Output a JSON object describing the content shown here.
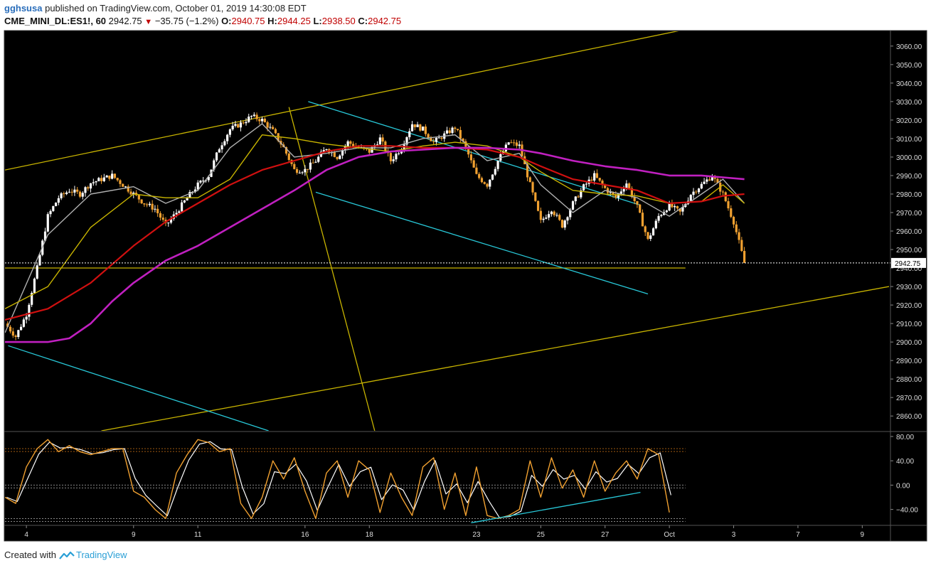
{
  "header": {
    "author": "gghsusa",
    "published_text": "published on TradingView.com, October 01, 2019 14:30:08 EDT",
    "symbol": "CME_MINI_DL:ES1!, 60",
    "last": "2942.75",
    "change": "−35.75 (−1.2%)",
    "open_label": "O:",
    "open": "2940.75",
    "high_label": "H:",
    "high": "2944.25",
    "low_label": "L:",
    "low": "2938.50",
    "close_label": "C:",
    "close": "2942.75",
    "down_arrow_icon": "triangle-down-icon"
  },
  "footer": {
    "created_with": "Created with",
    "brand": "TradingView",
    "logo_icon": "tradingview-logo-icon"
  },
  "colors": {
    "background": "#000000",
    "up_candle": "#ffffff",
    "down_candle": "#f0a030",
    "ma_fast": "#b0b0b0",
    "ma_mid": "#c8b400",
    "ma_slow": "#d01010",
    "ma_long": "#c020c0",
    "channel": "#28c8d8",
    "trendline": "#c8b400",
    "stoch_k": "#f0a030",
    "stoch_d": "#ffffff"
  },
  "chart_data": [
    {
      "type": "candlestick",
      "symbol": "CME_MINI_DL:ES1!",
      "interval": "60",
      "y_ticks": [
        2860,
        2870,
        2880,
        2890,
        2900,
        2910,
        2920,
        2930,
        2940,
        2950,
        2960,
        2970,
        2980,
        2990,
        3000,
        3010,
        3020,
        3030,
        3040,
        3050,
        3060
      ],
      "y_tick_labels": [
        "2860.00",
        "2870.00",
        "2880.00",
        "2890.00",
        "2900.00",
        "2910.00",
        "2920.00",
        "2930.00",
        "2940.00",
        "2950.00",
        "2960.00",
        "2970.00",
        "2980.00",
        "2990.00",
        "3000.00",
        "3010.00",
        "3020.00",
        "3030.00",
        "3040.00",
        "3050.00",
        "3060.00"
      ],
      "ylim": [
        2852,
        3068
      ],
      "last_price_label": "2942.75",
      "x_ticks": [
        {
          "label": "4",
          "t": 2
        },
        {
          "label": "9",
          "t": 12
        },
        {
          "label": "11",
          "t": 18
        },
        {
          "label": "16",
          "t": 28
        },
        {
          "label": "18",
          "t": 34
        },
        {
          "label": "23",
          "t": 44
        },
        {
          "label": "25",
          "t": 50
        },
        {
          "label": "27",
          "t": 56
        },
        {
          "label": "Oct",
          "t": 62
        },
        {
          "label": "3",
          "t": 68
        },
        {
          "label": "7",
          "t": 74
        },
        {
          "label": "9",
          "t": 80
        }
      ],
      "xlim": [
        0,
        82.5
      ],
      "price_path": [
        [
          0,
          2910
        ],
        [
          1,
          2903
        ],
        [
          2,
          2915
        ],
        [
          3,
          2940
        ],
        [
          4,
          2968
        ],
        [
          5,
          2978
        ],
        [
          6,
          2982
        ],
        [
          7,
          2980
        ],
        [
          8,
          2986
        ],
        [
          9,
          2988
        ],
        [
          10,
          2990
        ],
        [
          11,
          2985
        ],
        [
          12,
          2980
        ],
        [
          13,
          2975
        ],
        [
          14,
          2972
        ],
        [
          15,
          2963
        ],
        [
          16,
          2970
        ],
        [
          17,
          2978
        ],
        [
          18,
          2985
        ],
        [
          19,
          2990
        ],
        [
          20,
          3005
        ],
        [
          21,
          3015
        ],
        [
          22,
          3018
        ],
        [
          23,
          3022
        ],
        [
          24,
          3020
        ],
        [
          25,
          3014
        ],
        [
          26,
          3005
        ],
        [
          27,
          2993
        ],
        [
          28,
          2993
        ],
        [
          29,
          2998
        ],
        [
          30,
          3005
        ],
        [
          31,
          3000
        ],
        [
          32,
          3008
        ],
        [
          33,
          3005
        ],
        [
          34,
          3003
        ],
        [
          35,
          3010
        ],
        [
          36,
          2998
        ],
        [
          37,
          3005
        ],
        [
          38,
          3018
        ],
        [
          39,
          3015
        ],
        [
          40,
          3008
        ],
        [
          41,
          3012
        ],
        [
          42,
          3016
        ],
        [
          43,
          3005
        ],
        [
          44,
          2990
        ],
        [
          45,
          2985
        ],
        [
          46,
          2998
        ],
        [
          47,
          3008
        ],
        [
          48,
          3006
        ],
        [
          49,
          2985
        ],
        [
          50,
          2965
        ],
        [
          51,
          2972
        ],
        [
          52,
          2963
        ],
        [
          53,
          2975
        ],
        [
          54,
          2984
        ],
        [
          55,
          2990
        ],
        [
          56,
          2983
        ],
        [
          57,
          2978
        ],
        [
          58,
          2986
        ],
        [
          59,
          2973
        ],
        [
          60,
          2955
        ],
        [
          61,
          2968
        ],
        [
          62,
          2974
        ],
        [
          63,
          2970
        ],
        [
          64,
          2980
        ],
        [
          65,
          2985
        ],
        [
          66,
          2990
        ],
        [
          67,
          2980
        ],
        [
          68,
          2965
        ],
        [
          69,
          2942.75
        ]
      ],
      "ohlc_last": {
        "open": 2940.75,
        "high": 2944.25,
        "low": 2938.5,
        "close": 2942.75
      },
      "moving_averages": [
        {
          "color_key": "ma_fast",
          "points": [
            [
              0,
              2905
            ],
            [
              4,
              2958
            ],
            [
              8,
              2980
            ],
            [
              12,
              2984
            ],
            [
              15,
              2975
            ],
            [
              18,
              2982
            ],
            [
              21,
              3005
            ],
            [
              24,
              3018
            ],
            [
              27,
              3000
            ],
            [
              30,
              3002
            ],
            [
              33,
              3005
            ],
            [
              36,
              3005
            ],
            [
              39,
              3010
            ],
            [
              42,
              3012
            ],
            [
              45,
              2998
            ],
            [
              48,
              3002
            ],
            [
              50,
              2985
            ],
            [
              53,
              2970
            ],
            [
              56,
              2982
            ],
            [
              59,
              2978
            ],
            [
              62,
              2968
            ],
            [
              65,
              2980
            ],
            [
              67,
              2988
            ],
            [
              69,
              2975
            ]
          ]
        },
        {
          "color_key": "ma_mid",
          "points": [
            [
              0,
              2918
            ],
            [
              4,
              2930
            ],
            [
              8,
              2962
            ],
            [
              12,
              2980
            ],
            [
              15,
              2978
            ],
            [
              18,
              2978
            ],
            [
              21,
              2988
            ],
            [
              24,
              3012
            ],
            [
              27,
              3010
            ],
            [
              30,
              3007
            ],
            [
              33,
              3005
            ],
            [
              36,
              3003
            ],
            [
              39,
              3006
            ],
            [
              42,
              3008
            ],
            [
              45,
              3006
            ],
            [
              48,
              3000
            ],
            [
              50,
              2992
            ],
            [
              53,
              2982
            ],
            [
              56,
              2980
            ],
            [
              59,
              2979
            ],
            [
              62,
              2975
            ],
            [
              65,
              2976
            ],
            [
              67,
              2985
            ],
            [
              69,
              2975
            ]
          ]
        },
        {
          "color_key": "ma_slow",
          "points": [
            [
              0,
              2912
            ],
            [
              4,
              2918
            ],
            [
              8,
              2932
            ],
            [
              12,
              2952
            ],
            [
              15,
              2965
            ],
            [
              18,
              2975
            ],
            [
              21,
              2985
            ],
            [
              24,
              2993
            ],
            [
              27,
              2998
            ],
            [
              30,
              3003
            ],
            [
              33,
              3006
            ],
            [
              36,
              3006
            ],
            [
              39,
              3005
            ],
            [
              42,
              3005
            ],
            [
              45,
              3004
            ],
            [
              48,
              3000
            ],
            [
              50,
              2995
            ],
            [
              53,
              2988
            ],
            [
              56,
              2985
            ],
            [
              59,
              2982
            ],
            [
              62,
              2975
            ],
            [
              65,
              2976
            ],
            [
              67,
              2979
            ],
            [
              69,
              2980
            ]
          ]
        },
        {
          "color_key": "ma_long",
          "points": [
            [
              0,
              2900
            ],
            [
              4,
              2900
            ],
            [
              6,
              2902
            ],
            [
              8,
              2910
            ],
            [
              10,
              2922
            ],
            [
              12,
              2932
            ],
            [
              15,
              2944
            ],
            [
              18,
              2952
            ],
            [
              21,
              2962
            ],
            [
              24,
              2972
            ],
            [
              27,
              2982
            ],
            [
              30,
              2993
            ],
            [
              33,
              3000
            ],
            [
              36,
              3003
            ],
            [
              39,
              3004
            ],
            [
              42,
              3005
            ],
            [
              45,
              3005
            ],
            [
              48,
              3004
            ],
            [
              50,
              3002
            ],
            [
              53,
              2998
            ],
            [
              56,
              2995
            ],
            [
              59,
              2993
            ],
            [
              62,
              2990
            ],
            [
              65,
              2990
            ],
            [
              67,
              2989
            ],
            [
              69,
              2988
            ]
          ]
        }
      ],
      "trend_lines": [
        {
          "color_key": "trendline",
          "points": [
            [
              0,
              2993
            ],
            [
              63.5,
              3069
            ]
          ]
        },
        {
          "color_key": "trendline",
          "points": [
            [
              9,
              2852
            ],
            [
              82.5,
              2930
            ]
          ]
        },
        {
          "color_key": "trendline",
          "points": [
            [
              0,
              2940
            ],
            [
              63.5,
              2940
            ]
          ]
        },
        {
          "color_key": "trendline",
          "points": [
            [
              26.5,
              3027
            ],
            [
              34.5,
              2852
            ]
          ]
        },
        {
          "color_key": "channel",
          "points": [
            [
              28.3,
              3030
            ],
            [
              59.3,
              2974
            ]
          ]
        },
        {
          "color_key": "channel",
          "points": [
            [
              29,
              2981
            ],
            [
              60,
              2926
            ]
          ]
        },
        {
          "color_key": "channel",
          "points": [
            [
              0.3,
              2898
            ],
            [
              24.6,
              2852
            ]
          ]
        }
      ]
    },
    {
      "type": "line",
      "indicator": "stochastic",
      "y_ticks": [
        80,
        40,
        0,
        -40
      ],
      "y_tick_labels": [
        "80.00",
        "40.00",
        "0.00",
        "−40.00"
      ],
      "ylim": [
        -65,
        87
      ],
      "reference_levels": [
        60,
        0,
        -55
      ],
      "k_path": [
        [
          0,
          -20
        ],
        [
          1,
          -30
        ],
        [
          2,
          30
        ],
        [
          3,
          60
        ],
        [
          4,
          75
        ],
        [
          5,
          55
        ],
        [
          6,
          65
        ],
        [
          7,
          55
        ],
        [
          8,
          50
        ],
        [
          9,
          55
        ],
        [
          10,
          60
        ],
        [
          11,
          60
        ],
        [
          12,
          -10
        ],
        [
          13,
          -20
        ],
        [
          14,
          -40
        ],
        [
          15,
          -55
        ],
        [
          16,
          20
        ],
        [
          17,
          50
        ],
        [
          18,
          75
        ],
        [
          19,
          70
        ],
        [
          20,
          55
        ],
        [
          21,
          60
        ],
        [
          22,
          -30
        ],
        [
          23,
          -55
        ],
        [
          24,
          -20
        ],
        [
          25,
          40
        ],
        [
          26,
          10
        ],
        [
          27,
          45
        ],
        [
          28,
          -10
        ],
        [
          29,
          -55
        ],
        [
          30,
          20
        ],
        [
          31,
          40
        ],
        [
          32,
          -20
        ],
        [
          33,
          40
        ],
        [
          34,
          25
        ],
        [
          35,
          -45
        ],
        [
          36,
          20
        ],
        [
          37,
          -20
        ],
        [
          38,
          -50
        ],
        [
          39,
          30
        ],
        [
          40,
          45
        ],
        [
          41,
          -40
        ],
        [
          42,
          20
        ],
        [
          43,
          -50
        ],
        [
          44,
          30
        ],
        [
          45,
          -50
        ],
        [
          46,
          -55
        ],
        [
          47,
          -50
        ],
        [
          48,
          -40
        ],
        [
          49,
          40
        ],
        [
          50,
          -20
        ],
        [
          51,
          45
        ],
        [
          52,
          -5
        ],
        [
          53,
          25
        ],
        [
          54,
          -20
        ],
        [
          55,
          40
        ],
        [
          56,
          -10
        ],
        [
          57,
          20
        ],
        [
          58,
          40
        ],
        [
          59,
          10
        ],
        [
          60,
          60
        ],
        [
          61,
          50
        ],
        [
          62,
          -45
        ]
      ],
      "channel_line": {
        "color_key": "channel",
        "points": [
          [
            43.5,
            -62
          ],
          [
            59.3,
            -12
          ]
        ]
      }
    }
  ]
}
